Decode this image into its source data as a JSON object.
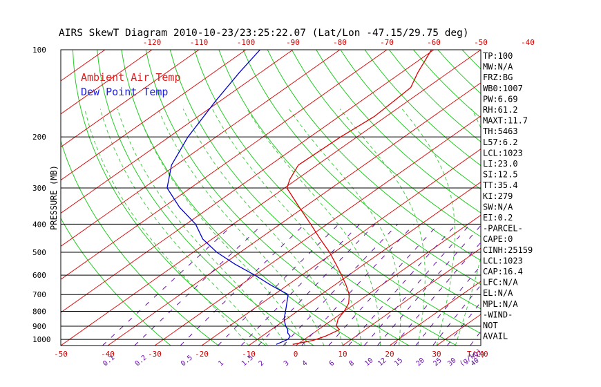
{
  "chart_data": {
    "type": "line",
    "title": "AIRS SkewT Diagram 2010-10-23/23:25:22.07 (Lat/Lon -47.15/29.75 deg)",
    "ylabel": "PRESSURE (MB)",
    "xlabel_right": "T(C)",
    "mixing_unit": "(g/kg)",
    "y_scale": "log",
    "pressure_ticks": [
      100,
      200,
      300,
      400,
      500,
      600,
      700,
      800,
      900,
      1000
    ],
    "pressure_range": [
      1050,
      100
    ],
    "bottom_temp_ticks": [
      -50,
      -40,
      -30,
      -20,
      -10,
      0,
      10,
      20,
      30,
      40
    ],
    "top_temp_ticks": [
      -120,
      -110,
      -100,
      -90,
      -80,
      -70,
      -60,
      -50,
      -40
    ],
    "mixing_ratio_labels": [
      "0.1",
      "0.2",
      "0.5",
      "1",
      "1.5",
      "2",
      "3",
      "4",
      "6",
      "8",
      "10",
      "12",
      "15",
      "20",
      "25",
      "30",
      "40"
    ],
    "legend": {
      "placement": "top-left",
      "items": [
        {
          "label": "Ambient Air Temp",
          "color": "#e02020"
        },
        {
          "label": "Dew Point Temp",
          "color": "#2020e0"
        }
      ]
    },
    "series": [
      {
        "name": "Ambient Air Temp",
        "color": "#dd0000",
        "points": [
          {
            "p": 1040,
            "t": -1.0
          },
          {
            "p": 1007,
            "t": 2.2
          },
          {
            "p": 975,
            "t": 3.5
          },
          {
            "p": 950,
            "t": 4.0
          },
          {
            "p": 925,
            "t": 4.5
          },
          {
            "p": 900,
            "t": 2.8
          },
          {
            "p": 850,
            "t": 1.0
          },
          {
            "p": 800,
            "t": 0.0
          },
          {
            "p": 750,
            "t": -1.5
          },
          {
            "p": 700,
            "t": -4.0
          },
          {
            "p": 650,
            "t": -7.5
          },
          {
            "p": 600,
            "t": -11.5
          },
          {
            "p": 550,
            "t": -16.0
          },
          {
            "p": 500,
            "t": -21.0
          },
          {
            "p": 450,
            "t": -27.0
          },
          {
            "p": 400,
            "t": -33.5
          },
          {
            "p": 350,
            "t": -41.0
          },
          {
            "p": 300,
            "t": -49.5
          },
          {
            "p": 280,
            "t": -51.5
          },
          {
            "p": 250,
            "t": -54.0
          },
          {
            "p": 200,
            "t": -53.5
          },
          {
            "p": 170,
            "t": -52.5
          },
          {
            "p": 150,
            "t": -53.0
          },
          {
            "p": 135,
            "t": -53.5
          },
          {
            "p": 120,
            "t": -56.5
          },
          {
            "p": 100,
            "t": -60.5
          }
        ]
      },
      {
        "name": "Dew Point Temp",
        "color": "#0000cc",
        "points": [
          {
            "p": 1040,
            "t": -4.5
          },
          {
            "p": 1000,
            "t": -3.5
          },
          {
            "p": 975,
            "t": -4.0
          },
          {
            "p": 950,
            "t": -5.5
          },
          {
            "p": 925,
            "t": -6.5
          },
          {
            "p": 900,
            "t": -8.0
          },
          {
            "p": 850,
            "t": -10.5
          },
          {
            "p": 800,
            "t": -12.5
          },
          {
            "p": 700,
            "t": -17.0
          },
          {
            "p": 650,
            "t": -23.5
          },
          {
            "p": 600,
            "t": -30.0
          },
          {
            "p": 550,
            "t": -37.5
          },
          {
            "p": 500,
            "t": -45.0
          },
          {
            "p": 450,
            "t": -52.0
          },
          {
            "p": 400,
            "t": -58.0
          },
          {
            "p": 350,
            "t": -66.5
          },
          {
            "p": 300,
            "t": -75.0
          },
          {
            "p": 250,
            "t": -81.0
          },
          {
            "p": 200,
            "t": -86.0
          },
          {
            "p": 150,
            "t": -91.0
          },
          {
            "p": 120,
            "t": -94.5
          },
          {
            "p": 100,
            "t": -97.0
          }
        ]
      }
    ],
    "indices": [
      "TP:100",
      "MW:N/A",
      "FRZ:BG",
      "WB0:1007",
      "PW:6.69",
      "RH:61.2",
      "MAXT:11.7",
      "TH:5463",
      "L57:6.2",
      "LCL:1023",
      "LI:23.0",
      "SI:12.5",
      "TT:35.4",
      "KI:279",
      "SW:N/A",
      "EI:0.2",
      "-PARCEL-",
      "CAPE:0",
      "CINH:25159",
      "LCL:1023",
      "CAP:16.4",
      "LFC:N/A",
      "EL:N/A",
      "MPL:N/A",
      "-WIND-",
      "NOT",
      "AVAIL"
    ],
    "grid": true
  }
}
